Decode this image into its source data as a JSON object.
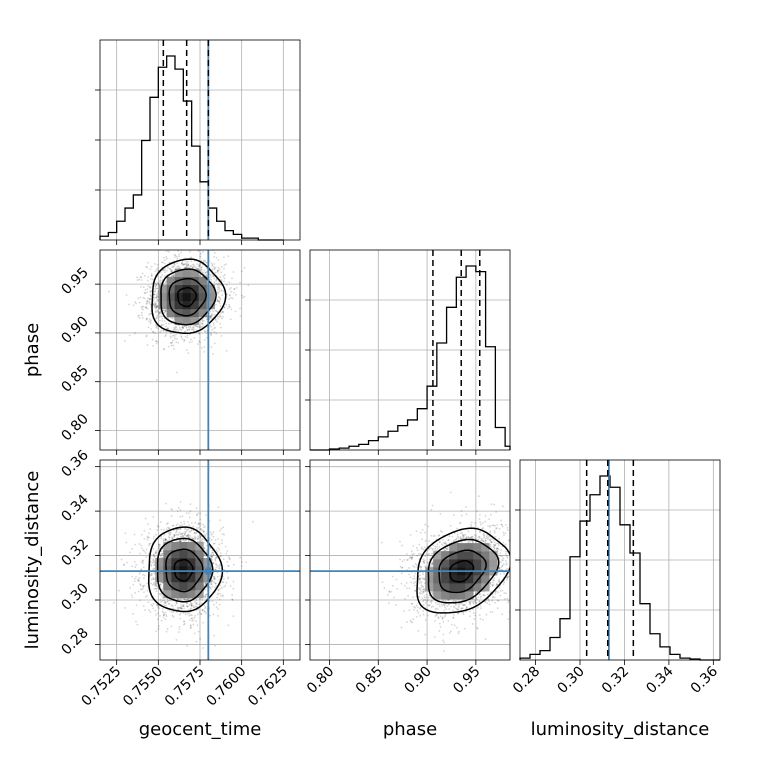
{
  "chart_data": {
    "type": "corner",
    "parameters": [
      "geocent_time",
      "phase",
      "luminosity_distance"
    ],
    "labels": {
      "geocent_time": "geocent_time",
      "phase": "phase",
      "luminosity_distance": "luminosity_distance"
    },
    "ranges": {
      "geocent_time": [
        0.7515,
        0.7635
      ],
      "phase": [
        0.78,
        0.985
      ],
      "luminosity_distance": [
        0.273,
        0.363
      ]
    },
    "ticks": {
      "geocent_time": [
        "0.7525",
        "0.7550",
        "0.7575",
        "0.7600",
        "0.7625"
      ],
      "phase": [
        "0.80",
        "0.85",
        "0.90",
        "0.95"
      ],
      "luminosity_distance": [
        "0.28",
        "0.30",
        "0.32",
        "0.34",
        "0.36"
      ]
    },
    "truths": {
      "geocent_time": 0.758,
      "phase": null,
      "luminosity_distance": 0.313
    },
    "truth_color": "#4682b4",
    "quantiles": {
      "geocent_time": [
        0.7553,
        0.7567,
        0.758
      ],
      "phase": [
        0.906,
        0.935,
        0.954
      ],
      "luminosity_distance": [
        0.303,
        0.3125,
        0.324
      ]
    },
    "histograms": {
      "geocent_time": {
        "edges": [
          0.7515,
          0.752,
          0.7525,
          0.753,
          0.7535,
          0.754,
          0.7545,
          0.755,
          0.7555,
          0.756,
          0.7565,
          0.757,
          0.7575,
          0.758,
          0.7585,
          0.759,
          0.7595,
          0.76,
          0.7605,
          0.761,
          0.7615,
          0.762,
          0.7625
        ],
        "counts": [
          0.02,
          0.04,
          0.1,
          0.17,
          0.24,
          0.53,
          0.76,
          0.92,
          0.98,
          0.91,
          0.74,
          0.5,
          0.31,
          0.17,
          0.1,
          0.05,
          0.03,
          0.01,
          0.01,
          0,
          0,
          0
        ]
      },
      "phase": {
        "edges": [
          0.78,
          0.79,
          0.8,
          0.81,
          0.82,
          0.83,
          0.84,
          0.85,
          0.86,
          0.87,
          0.88,
          0.89,
          0.9,
          0.91,
          0.92,
          0.93,
          0.94,
          0.95,
          0.96,
          0.97,
          0.98,
          0.985
        ],
        "counts": [
          0,
          0,
          0.005,
          0.01,
          0.02,
          0.03,
          0.05,
          0.07,
          0.1,
          0.13,
          0.16,
          0.22,
          0.34,
          0.57,
          0.76,
          0.92,
          0.98,
          0.95,
          0.55,
          0.12,
          0.02
        ]
      },
      "luminosity_distance": {
        "edges": [
          0.273,
          0.2775,
          0.282,
          0.2865,
          0.291,
          0.2955,
          0.3,
          0.3045,
          0.309,
          0.3135,
          0.318,
          0.3225,
          0.327,
          0.3315,
          0.336,
          0.3405,
          0.345,
          0.3495,
          0.354,
          0.3585,
          0.363
        ],
        "counts": [
          0.01,
          0.03,
          0.05,
          0.12,
          0.22,
          0.55,
          0.74,
          0.88,
          0.98,
          0.92,
          0.72,
          0.57,
          0.3,
          0.14,
          0.07,
          0.03,
          0.01,
          0.005,
          0,
          0
        ]
      }
    },
    "joint_2d": {
      "geocent_time-phase": {
        "center": [
          0.7567,
          0.937
        ],
        "sigma": [
          0.0011,
          0.019
        ],
        "rho": 0.05
      },
      "geocent_time-luminosity_distance": {
        "center": [
          0.7565,
          0.3135
        ],
        "sigma": [
          0.0011,
          0.0095
        ],
        "rho": 0.0
      },
      "phase-luminosity_distance": {
        "center": [
          0.935,
          0.313
        ],
        "sigma": [
          0.024,
          0.0095
        ],
        "rho": 0.25
      }
    },
    "contour_levels_sigma": [
      0.5,
      1.0,
      1.5,
      2.0
    ],
    "grid": true
  }
}
